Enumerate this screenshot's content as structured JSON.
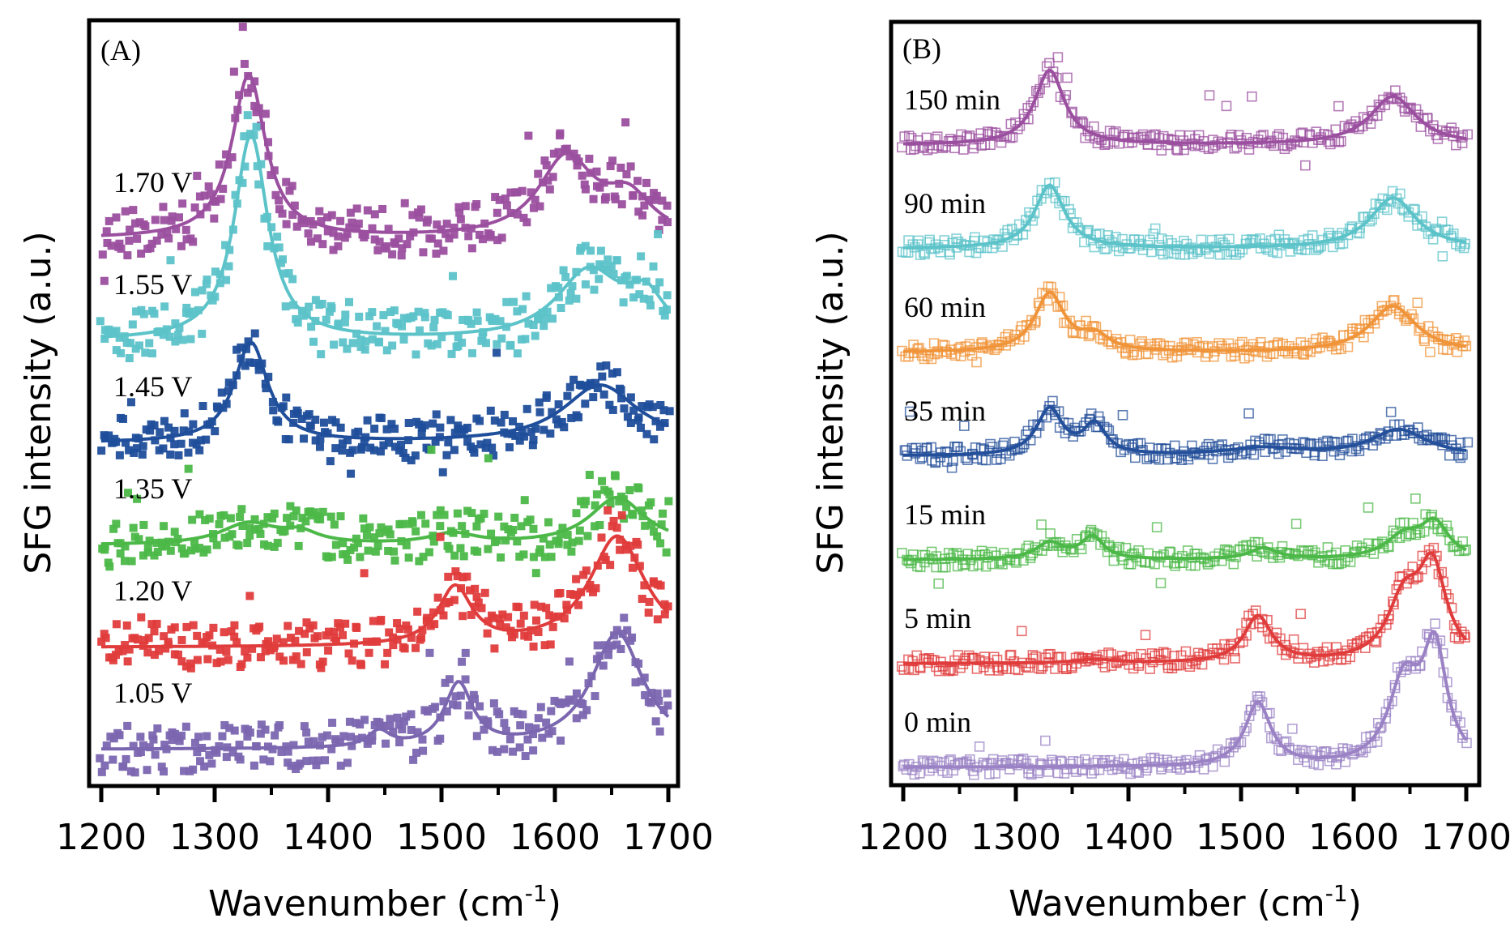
{
  "chart_data": [
    {
      "type": "line",
      "panel_label": "(A)",
      "title": "",
      "xlabel": "Wavenumber (cm-1)",
      "xlabel_base": "Wavenumber (cm",
      "xlabel_sup": "-1",
      "xlabel_end": ")",
      "ylabel": "SFG intensity (a.u.)",
      "xlim": [
        1200,
        1700
      ],
      "xticks": [
        1200,
        1300,
        1400,
        1500,
        1600,
        1700
      ],
      "xtick_labels": [
        "1200",
        "1300",
        "1400",
        "1500",
        "1600",
        "1700"
      ],
      "minor_xticks": [
        1250,
        1350,
        1450,
        1550,
        1650
      ],
      "yticks": [],
      "grid": false,
      "marker": "filled-square",
      "series": [
        {
          "name": "1.70 V",
          "color": "#9b4f9f",
          "offset": 5,
          "peaks": [
            [
              1330,
              1.55,
              18
            ],
            [
              1610,
              0.75,
              30
            ],
            [
              1665,
              0.35,
              25
            ]
          ]
        },
        {
          "name": "1.55 V",
          "color": "#5cc3c9",
          "offset": 4,
          "peaks": [
            [
              1332,
              1.95,
              18
            ],
            [
              1630,
              0.65,
              35
            ],
            [
              1680,
              0.35,
              20
            ]
          ]
        },
        {
          "name": "1.45 V",
          "color": "#1f4e9b",
          "offset": 3,
          "peaks": [
            [
              1332,
              0.95,
              18
            ],
            [
              1640,
              0.55,
              40
            ]
          ]
        },
        {
          "name": "1.35 V",
          "color": "#4cb848",
          "offset": 2,
          "peaks": [
            [
              1330,
              0.2,
              30
            ],
            [
              1375,
              0.1,
              20
            ],
            [
              1510,
              0.1,
              25
            ],
            [
              1655,
              0.45,
              30
            ]
          ]
        },
        {
          "name": "1.20 V",
          "color": "#e03c3c",
          "offset": 1,
          "peaks": [
            [
              1512,
              0.55,
              18
            ],
            [
              1655,
              1.05,
              30
            ]
          ]
        },
        {
          "name": "1.05 V",
          "color": "#7b66b0",
          "offset": 0,
          "peaks": [
            [
              1445,
              0.15,
              12
            ],
            [
              1515,
              0.6,
              15
            ],
            [
              1655,
              1.1,
              28
            ]
          ]
        }
      ]
    },
    {
      "type": "line",
      "panel_label": "(B)",
      "title": "",
      "xlabel": "Wavenumber (cm-1)",
      "xlabel_base": "Wavenumber (cm",
      "xlabel_sup": "-1",
      "xlabel_end": ")",
      "ylabel": "SFG intensity (a.u.)",
      "xlim": [
        1200,
        1700
      ],
      "xticks": [
        1200,
        1300,
        1400,
        1500,
        1600,
        1700
      ],
      "xtick_labels": [
        "1200",
        "1300",
        "1400",
        "1500",
        "1600",
        "1700"
      ],
      "minor_xticks": [
        1250,
        1350,
        1450,
        1550,
        1650
      ],
      "yticks": [],
      "grid": false,
      "marker": "open-square",
      "series": [
        {
          "name": "150 min",
          "color": "#9b4f9f",
          "offset": 6,
          "peaks": [
            [
              1330,
              1.0,
              16
            ],
            [
              1635,
              0.65,
              25
            ]
          ]
        },
        {
          "name": "90 min",
          "color": "#5cc3c9",
          "offset": 5,
          "peaks": [
            [
              1330,
              0.85,
              16
            ],
            [
              1635,
              0.68,
              25
            ]
          ]
        },
        {
          "name": "60 min",
          "color": "#f0943a",
          "offset": 4,
          "peaks": [
            [
              1330,
              0.78,
              16
            ],
            [
              1370,
              0.2,
              15
            ],
            [
              1635,
              0.62,
              25
            ]
          ]
        },
        {
          "name": "35 min",
          "color": "#244f9a",
          "offset": 3,
          "peaks": [
            [
              1330,
              0.62,
              14
            ],
            [
              1370,
              0.4,
              12
            ],
            [
              1520,
              0.1,
              40
            ],
            [
              1640,
              0.35,
              30
            ]
          ]
        },
        {
          "name": "15 min",
          "color": "#4cb848",
          "offset": 2,
          "peaks": [
            [
              1330,
              0.22,
              15
            ],
            [
              1368,
              0.3,
              12
            ],
            [
              1520,
              0.15,
              15
            ],
            [
              1645,
              0.3,
              20
            ],
            [
              1672,
              0.45,
              15
            ]
          ]
        },
        {
          "name": "5 min",
          "color": "#e03c3c",
          "offset": 1,
          "peaks": [
            [
              1370,
              0.05,
              20
            ],
            [
              1515,
              0.62,
              15
            ],
            [
              1645,
              0.8,
              18
            ],
            [
              1670,
              1.2,
              15
            ]
          ]
        },
        {
          "name": "0 min",
          "color": "#9a82c4",
          "offset": 0,
          "peaks": [
            [
              1515,
              0.85,
              14
            ],
            [
              1645,
              1.1,
              17
            ],
            [
              1672,
              1.5,
              13
            ]
          ]
        }
      ]
    }
  ]
}
